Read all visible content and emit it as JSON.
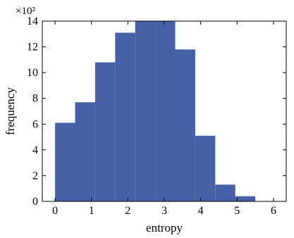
{
  "chart_data": {
    "type": "bar",
    "histogram": true,
    "bin_edges": [
      0,
      0.55,
      1.1,
      1.65,
      2.2,
      2.75,
      3.3,
      3.85,
      4.4,
      4.95,
      5.5
    ],
    "values": [
      6.1,
      7.7,
      10.8,
      13.1,
      14.0,
      14.0,
      11.8,
      5.1,
      1.3,
      0.4
    ],
    "color": "#4761a8",
    "xlabel": "entropy",
    "ylabel": "frequency",
    "y_multiplier": "×10²",
    "xlim": [
      -0.35,
      6.35
    ],
    "ylim": [
      0,
      14
    ],
    "xticks": [
      0,
      1,
      2,
      3,
      4,
      5,
      6
    ],
    "yticks": [
      0,
      2,
      4,
      6,
      8,
      10,
      12,
      14
    ],
    "grid": false,
    "legend": "none"
  }
}
